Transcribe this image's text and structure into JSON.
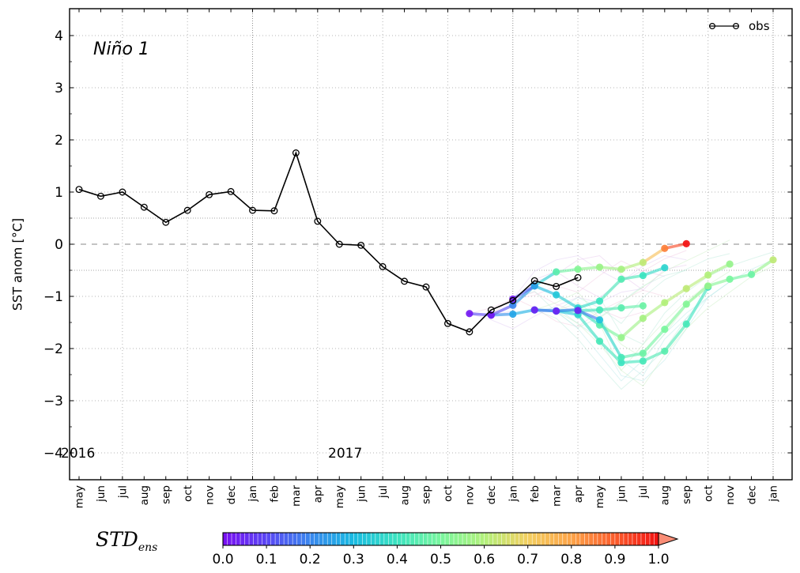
{
  "figure": {
    "title": "Niño 1",
    "y_axis_label": "SST anom [°C]",
    "legend_label": "obs",
    "year_labels": [
      "2016",
      "2017"
    ],
    "std_label_main": "STD",
    "std_label_sub": "ens"
  },
  "chart_data": {
    "type": "line",
    "title": "Niño 1",
    "ylabel": "SST anom [°C]",
    "ylim": [
      -4.5,
      4.5
    ],
    "yticks": [
      -4,
      -3,
      -2,
      -1,
      0,
      1,
      2,
      3,
      4
    ],
    "zero_line": 0,
    "threshold_lines": [
      0.5,
      -0.5
    ],
    "grid": "dotted, vertical every 3 months (jul/oct/jan/apr), horizontal at integers and ±0.5, dashed at 0",
    "legend_position": "upper right",
    "x_tick_labels": [
      "may",
      "jun",
      "jul",
      "aug",
      "sep",
      "oct",
      "nov",
      "dec",
      "jan",
      "feb",
      "mar",
      "apr",
      "may",
      "jun",
      "jul",
      "aug",
      "sep",
      "oct",
      "nov",
      "dec",
      "jan",
      "feb",
      "mar",
      "apr",
      "may",
      "jun",
      "jul",
      "aug",
      "sep",
      "oct",
      "nov",
      "dec",
      "jan"
    ],
    "year_annotations": [
      {
        "label": "2016",
        "month_index": 0
      },
      {
        "label": "2017",
        "month_index": 12
      }
    ],
    "obs": {
      "label": "obs",
      "start_month": 0,
      "values": [
        1.05,
        0.92,
        1.0,
        0.71,
        0.42,
        0.65,
        0.95,
        1.01,
        0.65,
        0.64,
        1.75,
        0.44,
        0.0,
        -0.02,
        -0.43,
        -0.71,
        -0.82,
        -1.52,
        -1.68,
        -1.26,
        -1.08,
        -0.7,
        -0.81,
        -0.64
      ]
    },
    "forecasts": [
      {
        "init": "nov 2017",
        "start_month": 18,
        "values": [
          -1.33,
          -1.36,
          -1.34,
          -1.26,
          -1.28,
          -1.27,
          -1.26,
          -1.22,
          -1.18
        ],
        "std": [
          0.02,
          0.18,
          0.26,
          0.3,
          0.34,
          0.38,
          0.42,
          0.45,
          0.48
        ]
      },
      {
        "init": "dec 2017",
        "start_month": 19,
        "values": [
          -1.36,
          -1.17,
          -0.8,
          -0.97,
          -1.22,
          -1.09,
          -0.67,
          -0.6,
          -0.45
        ],
        "std": [
          0.02,
          0.2,
          0.28,
          0.33,
          0.36,
          0.4,
          0.44,
          0.4,
          0.36
        ]
      },
      {
        "init": "jan 2018",
        "start_month": 20,
        "values": [
          -1.05,
          -0.8,
          -0.53,
          -0.48,
          -0.44,
          -0.48,
          -0.35,
          -0.08,
          0.01
        ],
        "std": [
          0.02,
          0.25,
          0.45,
          0.52,
          0.56,
          0.58,
          0.62,
          0.85,
          1.0
        ]
      },
      {
        "init": "feb 2018",
        "start_month": 21,
        "values": [
          -1.26,
          -1.28,
          -1.35,
          -1.86,
          -2.27,
          -2.24,
          -2.05,
          -1.53,
          -0.82
        ],
        "std": [
          0.03,
          0.3,
          0.36,
          0.42,
          0.4,
          0.42,
          0.45,
          0.42,
          0.38
        ]
      },
      {
        "init": "mar 2018",
        "start_month": 22,
        "values": [
          -1.28,
          -1.25,
          -1.55,
          -1.79,
          -1.42,
          -1.12,
          -0.85,
          -0.59,
          -0.38
        ],
        "std": [
          0.03,
          0.35,
          0.45,
          0.55,
          0.58,
          0.6,
          0.62,
          0.6,
          0.55
        ]
      },
      {
        "init": "apr 2018",
        "start_month": 23,
        "values": [
          -1.27,
          -1.45,
          -2.17,
          -2.09,
          -1.63,
          -1.15,
          -0.8,
          -0.67,
          -0.58,
          -0.3
        ],
        "std": [
          0.04,
          0.32,
          0.42,
          0.48,
          0.5,
          0.52,
          0.55,
          0.5,
          0.48,
          0.62
        ]
      }
    ],
    "members": [
      {
        "start_month": 18,
        "color": "#ddc7f2",
        "values": [
          -1.33,
          -1.45,
          -1.62,
          -1.38,
          -1.18,
          -1.02,
          -1.12,
          -0.92,
          -0.85
        ]
      },
      {
        "start_month": 18,
        "color": "#f0c5e0",
        "values": [
          -1.33,
          -1.22,
          -1.05,
          -0.92,
          -1.15,
          -1.32,
          -1.25,
          -1.42,
          -1.3
        ]
      },
      {
        "start_month": 19,
        "color": "#e5c2ea",
        "values": [
          -1.36,
          -1.28,
          -0.68,
          -0.52,
          -0.8,
          -1.02,
          -0.72,
          -0.5,
          -0.62
        ]
      },
      {
        "start_month": 19,
        "color": "#f2c8dc",
        "values": [
          -1.36,
          -1.02,
          -1.22,
          -1.48,
          -1.58,
          -1.28,
          -1.08,
          -0.88,
          -1.0
        ]
      },
      {
        "start_month": 20,
        "color": "#ddc7f2",
        "values": [
          -1.05,
          -0.52,
          -0.3,
          -0.22,
          -0.5,
          -0.72,
          -0.42,
          -0.22,
          -0.3
        ]
      },
      {
        "start_month": 20,
        "color": "#f0c5e0",
        "values": [
          -1.05,
          -0.98,
          -0.8,
          -0.92,
          -0.6,
          -0.32,
          -0.52,
          -0.28,
          -0.12
        ]
      },
      {
        "start_month": 20,
        "color": "#e5c2ea",
        "values": [
          -1.05,
          -0.72,
          -0.58,
          -0.3,
          -0.22,
          -0.58,
          -0.88,
          -0.48,
          -0.4
        ]
      },
      {
        "start_month": 20,
        "color": "#b9e9d9",
        "values": [
          -1.05,
          -0.9,
          -1.3,
          -1.6,
          -1.4,
          -1.1,
          -0.8,
          -0.6,
          -0.5
        ]
      },
      {
        "start_month": 21,
        "color": "#b9e9d9",
        "values": [
          -1.26,
          -1.42,
          -1.82,
          -2.32,
          -2.78,
          -2.42,
          -2.02,
          -1.42,
          -0.92
        ]
      },
      {
        "start_month": 21,
        "color": "#c8eec2",
        "values": [
          -1.26,
          -1.12,
          -0.92,
          -1.42,
          -1.92,
          -2.18,
          -1.72,
          -1.18,
          -0.72
        ]
      },
      {
        "start_month": 21,
        "color": "#b4e6e6",
        "values": [
          -1.26,
          -1.22,
          -1.52,
          -1.82,
          -2.52,
          -2.62,
          -2.22,
          -1.62,
          -1.02
        ]
      },
      {
        "start_month": 22,
        "color": "#c8eec2",
        "values": [
          -1.28,
          -1.52,
          -1.92,
          -2.42,
          -1.92,
          -1.48,
          -1.08,
          -0.78,
          -0.52
        ]
      },
      {
        "start_month": 22,
        "color": "#b9e9d9",
        "values": [
          -1.28,
          -1.02,
          -1.22,
          -1.52,
          -1.02,
          -0.68,
          -0.48,
          -0.28,
          -0.18
        ]
      },
      {
        "start_month": 22,
        "color": "#b4e6e6",
        "values": [
          -1.28,
          -1.62,
          -2.12,
          -2.62,
          -2.22,
          -1.72,
          -1.32,
          -1.02,
          -0.72
        ]
      },
      {
        "start_month": 22,
        "color": "#c8eec2",
        "values": [
          -1.28,
          -1.12,
          -1.42,
          -1.12,
          -0.82,
          -0.52,
          -0.32,
          -0.12,
          0.08
        ]
      },
      {
        "start_month": 23,
        "color": "#c8eec2",
        "values": [
          -1.27,
          -1.52,
          -2.42,
          -2.72,
          -2.12,
          -1.62,
          -1.22,
          -0.92,
          -0.62,
          -0.42
        ]
      },
      {
        "start_month": 23,
        "color": "#b9e9d9",
        "values": [
          -1.27,
          -1.02,
          -1.72,
          -1.92,
          -1.32,
          -0.92,
          -0.62,
          -0.42,
          -0.28,
          -0.15
        ]
      },
      {
        "start_month": 23,
        "color": "#b4e6e6",
        "values": [
          -1.27,
          -1.32,
          -2.22,
          -2.52,
          -1.82,
          -1.42,
          -1.02,
          -0.72,
          -0.48,
          -0.3
        ]
      }
    ],
    "colorbar": {
      "label": "STD_ens",
      "tick_labels": [
        "0.0",
        "0.1",
        "0.2",
        "0.3",
        "0.4",
        "0.5",
        "0.6",
        "0.7",
        "0.8",
        "0.9",
        "1.0"
      ],
      "stops": [
        [
          0.0,
          "#7a0ef2"
        ],
        [
          0.1,
          "#5a46f4"
        ],
        [
          0.2,
          "#3a87ee"
        ],
        [
          0.3,
          "#19bbe2"
        ],
        [
          0.4,
          "#3ce4c0"
        ],
        [
          0.5,
          "#79f69e"
        ],
        [
          0.6,
          "#b2f07b"
        ],
        [
          0.7,
          "#f3cf60"
        ],
        [
          0.8,
          "#fda449"
        ],
        [
          0.9,
          "#fb5c2c"
        ],
        [
          1.0,
          "#f21111"
        ]
      ],
      "over_arrow_color": "#f98d76"
    }
  }
}
